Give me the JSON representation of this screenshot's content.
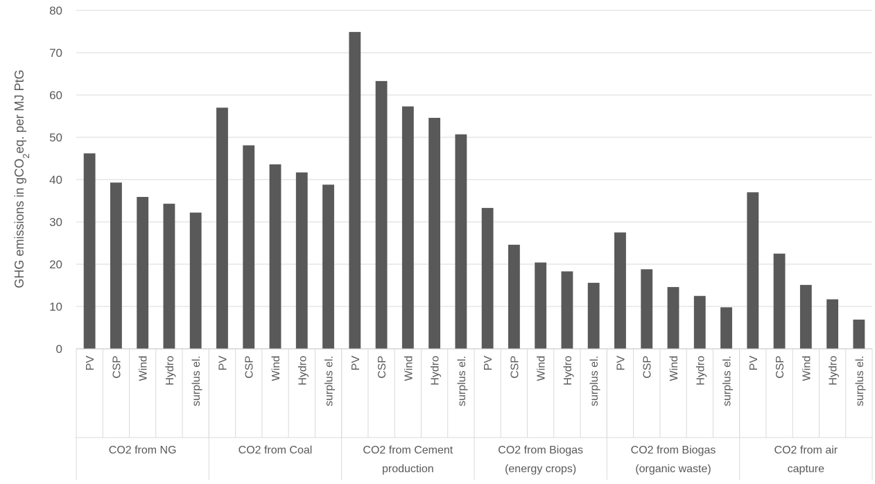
{
  "chart_data": {
    "type": "bar",
    "title": "",
    "ylabel": {
      "prefix": "GHG emissions in gCO",
      "subscript": "2",
      "suffix": "eq. per MJ PtG"
    },
    "xlabel": "",
    "ylim": [
      0,
      80
    ],
    "yticks": [
      0,
      10,
      20,
      30,
      40,
      50,
      60,
      70,
      80
    ],
    "grid": true,
    "legend": "none",
    "bar_color": "#595959",
    "groups": [
      {
        "label": [
          "CO2 from NG"
        ],
        "categories": [
          "PV",
          "CSP",
          "Wind",
          "Hydro",
          "surplus el."
        ],
        "values": [
          46.2,
          39.3,
          35.9,
          34.3,
          32.2
        ]
      },
      {
        "label": [
          "CO2 from Coal"
        ],
        "categories": [
          "PV",
          "CSP",
          "Wind",
          "Hydro",
          "surplus el."
        ],
        "values": [
          57.0,
          48.1,
          43.6,
          41.7,
          38.8
        ]
      },
      {
        "label": [
          "CO2 from Cement",
          "production"
        ],
        "categories": [
          "PV",
          "CSP",
          "Wind",
          "Hydro",
          "surplus el."
        ],
        "values": [
          74.9,
          63.3,
          57.3,
          54.6,
          50.7
        ]
      },
      {
        "label": [
          "CO2 from Biogas",
          "(energy crops)"
        ],
        "categories": [
          "PV",
          "CSP",
          "Wind",
          "Hydro",
          "surplus el."
        ],
        "values": [
          33.3,
          24.6,
          20.4,
          18.3,
          15.6
        ]
      },
      {
        "label": [
          "CO2 from Biogas",
          "(organic waste)"
        ],
        "categories": [
          "PV",
          "CSP",
          "Wind",
          "Hydro",
          "surplus el."
        ],
        "values": [
          27.5,
          18.8,
          14.6,
          12.5,
          9.8
        ]
      },
      {
        "label": [
          "CO2 from air",
          "capture"
        ],
        "categories": [
          "PV",
          "CSP",
          "Wind",
          "Hydro",
          "surplus el."
        ],
        "values": [
          37.0,
          22.5,
          15.1,
          11.7,
          6.9
        ]
      }
    ]
  }
}
